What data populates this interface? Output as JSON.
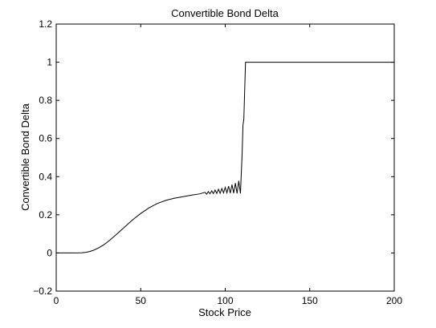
{
  "chart_data": {
    "type": "line",
    "title": "Convertible Bond Delta",
    "xlabel": "Stock Price",
    "ylabel": "Convertible Bond Delta",
    "xlim": [
      0,
      200
    ],
    "ylim": [
      -0.2,
      1.2
    ],
    "xticks": [
      0,
      50,
      100,
      150,
      200
    ],
    "yticks": [
      -0.2,
      0,
      0.2,
      0.4,
      0.6,
      0.8,
      1,
      1.2
    ],
    "xtick_labels": [
      "0",
      "50",
      "100",
      "150",
      "200"
    ],
    "ytick_labels": [
      "−0.2",
      "0",
      "0.2",
      "0.4",
      "0.6",
      "0.8",
      "1",
      "1.2"
    ],
    "grid": false,
    "line_color": "#000000",
    "series": [
      {
        "x": [
          0,
          10,
          15,
          18,
          20,
          22,
          25,
          28,
          30,
          33,
          36,
          40,
          45,
          50,
          55,
          60,
          65,
          70,
          75,
          80,
          85,
          88,
          89,
          90,
          91,
          92,
          93,
          94,
          95,
          96,
          97,
          98,
          99,
          100,
          101,
          102,
          103,
          104,
          105,
          106,
          107,
          108,
          109,
          110,
          110.5,
          111,
          112,
          200
        ],
        "y": [
          0,
          0,
          0.001,
          0.004,
          0.008,
          0.014,
          0.026,
          0.042,
          0.055,
          0.077,
          0.1,
          0.132,
          0.172,
          0.207,
          0.237,
          0.26,
          0.276,
          0.287,
          0.295,
          0.303,
          0.31,
          0.318,
          0.308,
          0.322,
          0.31,
          0.326,
          0.311,
          0.33,
          0.312,
          0.334,
          0.313,
          0.338,
          0.315,
          0.344,
          0.315,
          0.35,
          0.314,
          0.358,
          0.314,
          0.366,
          0.312,
          0.378,
          0.312,
          0.52,
          0.67,
          0.7,
          1.0,
          1.0
        ]
      }
    ]
  }
}
